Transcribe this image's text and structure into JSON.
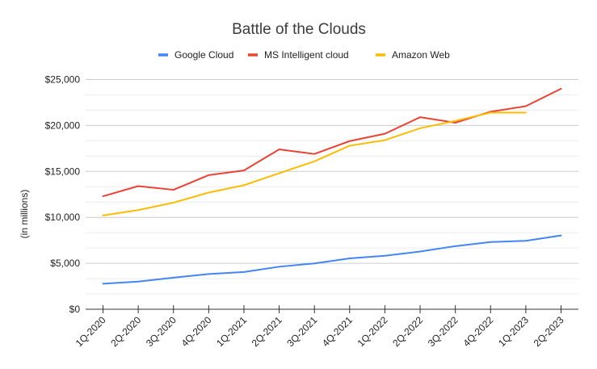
{
  "chart_data": {
    "type": "line",
    "title": "Battle of the Clouds",
    "xlabel": "",
    "ylabel": "(in millions)",
    "ylim": [
      0,
      25000
    ],
    "yticks": [
      0,
      5000,
      10000,
      15000,
      20000,
      25000
    ],
    "ytick_labels": [
      "$0",
      "$5,000",
      "$10,000",
      "$15,000",
      "$20,000",
      "$25,000"
    ],
    "minor_gridlines_per_major": 2,
    "grid": true,
    "legend_position": "top",
    "categories": [
      "1Q-2020",
      "2Q-2020",
      "3Q-2020",
      "4Q-2020",
      "1Q-2021",
      "2Q-2021",
      "3Q-2021",
      "4Q-2021",
      "1Q-2022",
      "2Q-2022",
      "3Q-2022",
      "4Q-2022",
      "1Q-2023",
      "2Q-2023"
    ],
    "series": [
      {
        "name": "Google Cloud",
        "color": "#4285F4",
        "values": [
          2780,
          3010,
          3440,
          3830,
          4050,
          4630,
          4990,
          5540,
          5820,
          6280,
          6870,
          7320,
          7450,
          8030
        ]
      },
      {
        "name": "MS Intelligent cloud",
        "color": "#EA4335",
        "values": [
          12300,
          13400,
          13000,
          14600,
          15100,
          17400,
          16900,
          18300,
          19100,
          20900,
          20300,
          21500,
          22100,
          24000
        ]
      },
      {
        "name": "Amazon Web",
        "color": "#FBBC04",
        "values": [
          10200,
          10800,
          11600,
          12700,
          13500,
          14800,
          16100,
          17800,
          18400,
          19700,
          20500,
          21400,
          21400,
          null
        ]
      }
    ]
  }
}
